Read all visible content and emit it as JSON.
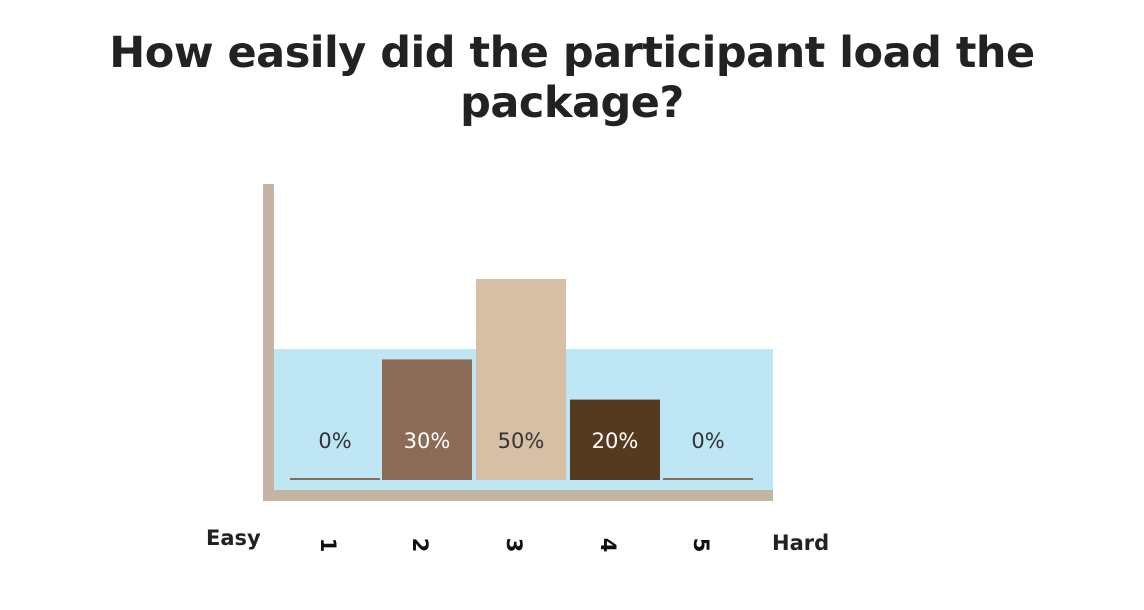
{
  "chart_data": {
    "type": "bar",
    "title": "How easily did the participant load the package?",
    "categories": [
      "1",
      "2",
      "3",
      "4",
      "5"
    ],
    "values": [
      0,
      30,
      50,
      20,
      0
    ],
    "value_labels": [
      "0%",
      "30%",
      "50%",
      "20%",
      "0%"
    ],
    "unit": "%",
    "scale_left_label": "Easy",
    "scale_right_label": "Hard",
    "ylim": [
      0,
      70
    ],
    "bar_colors": [
      "#8b6a56",
      "#8b6a56",
      "#d7bfa6",
      "#553a1f",
      "#8b6a56"
    ],
    "label_colors": [
      "#333333",
      "#ffffff",
      "#333333",
      "#ffffff",
      "#333333"
    ],
    "background_band_color": "#bfe6f5",
    "axis_color": "#c4b4a4",
    "grid": false,
    "legend": "none",
    "tick_labels_rotated": true
  }
}
